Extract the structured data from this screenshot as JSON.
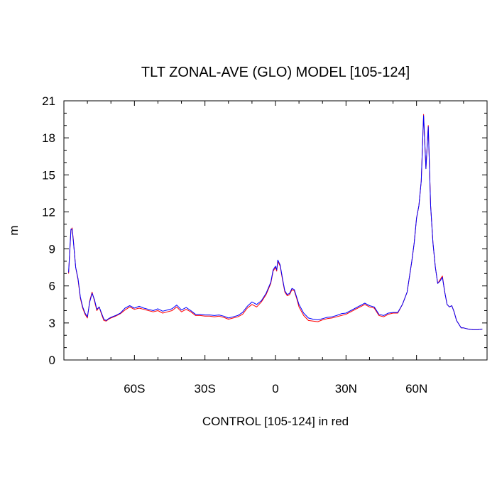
{
  "chart_data": {
    "type": "line",
    "title": "TLT ZONAL-AVE (GLO) MODEL [105-124]",
    "xlabel": "CONTROL [105-124] in red",
    "ylabel": "m",
    "xlim": [
      -90,
      90
    ],
    "ylim": [
      0,
      21
    ],
    "yticks": [
      0,
      3,
      6,
      9,
      12,
      15,
      18,
      21
    ],
    "xticks": [
      {
        "value": -60,
        "label": "60S"
      },
      {
        "value": -30,
        "label": "30S"
      },
      {
        "value": 0,
        "label": "0"
      },
      {
        "value": 30,
        "label": "30N"
      },
      {
        "value": 60,
        "label": "60N"
      }
    ],
    "grid": false,
    "series": [
      {
        "color": "#ff0000",
        "points": [
          [
            -88,
            7.0
          ],
          [
            -87,
            10.5
          ],
          [
            -86.5,
            10.7
          ],
          [
            -86,
            9.8
          ],
          [
            -85,
            7.5
          ],
          [
            -84,
            6.5
          ],
          [
            -83,
            5.0
          ],
          [
            -82,
            4.2
          ],
          [
            -81,
            3.7
          ],
          [
            -80,
            3.4
          ],
          [
            -79,
            4.8
          ],
          [
            -78,
            5.5
          ],
          [
            -77,
            4.8
          ],
          [
            -76,
            4.0
          ],
          [
            -75,
            4.3
          ],
          [
            -74,
            3.7
          ],
          [
            -73,
            3.2
          ],
          [
            -72,
            3.15
          ],
          [
            -71,
            3.3
          ],
          [
            -70,
            3.4
          ],
          [
            -68,
            3.55
          ],
          [
            -66,
            3.75
          ],
          [
            -64,
            4.05
          ],
          [
            -62,
            4.3
          ],
          [
            -60,
            4.1
          ],
          [
            -58,
            4.2
          ],
          [
            -56,
            4.1
          ],
          [
            -54,
            4.0
          ],
          [
            -52,
            3.9
          ],
          [
            -50,
            4.0
          ],
          [
            -48,
            3.8
          ],
          [
            -46,
            3.9
          ],
          [
            -44,
            4.0
          ],
          [
            -42,
            4.3
          ],
          [
            -40,
            3.9
          ],
          [
            -38,
            4.1
          ],
          [
            -36,
            3.9
          ],
          [
            -34,
            3.6
          ],
          [
            -32,
            3.6
          ],
          [
            -30,
            3.55
          ],
          [
            -28,
            3.55
          ],
          [
            -26,
            3.5
          ],
          [
            -24,
            3.55
          ],
          [
            -22,
            3.45
          ],
          [
            -20,
            3.3
          ],
          [
            -18,
            3.4
          ],
          [
            -16,
            3.5
          ],
          [
            -14,
            3.7
          ],
          [
            -12,
            4.2
          ],
          [
            -10,
            4.5
          ],
          [
            -8,
            4.3
          ],
          [
            -6,
            4.7
          ],
          [
            -4,
            5.3
          ],
          [
            -2,
            6.2
          ],
          [
            -1,
            7.2
          ],
          [
            0,
            7.5
          ],
          [
            0.5,
            7.2
          ],
          [
            1,
            8.0
          ],
          [
            2,
            7.6
          ],
          [
            3,
            6.5
          ],
          [
            4,
            5.5
          ],
          [
            5,
            5.2
          ],
          [
            6,
            5.3
          ],
          [
            7,
            5.7
          ],
          [
            8,
            5.6
          ],
          [
            9,
            5.0
          ],
          [
            10,
            4.3
          ],
          [
            12,
            3.6
          ],
          [
            14,
            3.2
          ],
          [
            16,
            3.15
          ],
          [
            18,
            3.1
          ],
          [
            20,
            3.25
          ],
          [
            22,
            3.35
          ],
          [
            24,
            3.4
          ],
          [
            26,
            3.5
          ],
          [
            28,
            3.6
          ],
          [
            30,
            3.7
          ],
          [
            32,
            3.9
          ],
          [
            34,
            4.1
          ],
          [
            36,
            4.3
          ],
          [
            38,
            4.5
          ],
          [
            40,
            4.3
          ],
          [
            42,
            4.2
          ],
          [
            44,
            3.6
          ],
          [
            46,
            3.5
          ],
          [
            48,
            3.7
          ],
          [
            50,
            3.8
          ],
          [
            52,
            3.8
          ],
          [
            54,
            4.5
          ],
          [
            56,
            5.5
          ],
          [
            58,
            8.0
          ],
          [
            59,
            9.5
          ],
          [
            60,
            11.5
          ],
          [
            61,
            12.5
          ],
          [
            62,
            14.5
          ],
          [
            63,
            19.9
          ],
          [
            64,
            15.5
          ],
          [
            65,
            19.0
          ],
          [
            66,
            12.5
          ],
          [
            67,
            9.5
          ],
          [
            68,
            7.5
          ],
          [
            69,
            6.2
          ],
          [
            70,
            6.5
          ],
          [
            71,
            6.8
          ],
          [
            72,
            5.5
          ],
          [
            73,
            4.5
          ],
          [
            74,
            4.3
          ],
          [
            75,
            4.4
          ],
          [
            76,
            3.9
          ],
          [
            77,
            3.2
          ],
          [
            78,
            2.9
          ],
          [
            79,
            2.6
          ],
          [
            80,
            2.6
          ],
          [
            82,
            2.5
          ],
          [
            84,
            2.45
          ],
          [
            86,
            2.45
          ],
          [
            88,
            2.5
          ]
        ]
      },
      {
        "color": "#0000ff",
        "points": [
          [
            -88,
            7.1
          ],
          [
            -87,
            10.6
          ],
          [
            -86.5,
            10.6
          ],
          [
            -86,
            9.7
          ],
          [
            -85,
            7.5
          ],
          [
            -84,
            6.6
          ],
          [
            -83,
            5.1
          ],
          [
            -82,
            4.3
          ],
          [
            -81,
            3.8
          ],
          [
            -80,
            3.5
          ],
          [
            -79,
            4.7
          ],
          [
            -78,
            5.4
          ],
          [
            -77,
            4.9
          ],
          [
            -76,
            4.1
          ],
          [
            -75,
            4.3
          ],
          [
            -74,
            3.8
          ],
          [
            -73,
            3.3
          ],
          [
            -72,
            3.2
          ],
          [
            -71,
            3.35
          ],
          [
            -70,
            3.45
          ],
          [
            -68,
            3.6
          ],
          [
            -66,
            3.8
          ],
          [
            -64,
            4.2
          ],
          [
            -62,
            4.4
          ],
          [
            -60,
            4.2
          ],
          [
            -58,
            4.35
          ],
          [
            -56,
            4.2
          ],
          [
            -54,
            4.1
          ],
          [
            -52,
            4.0
          ],
          [
            -50,
            4.15
          ],
          [
            -48,
            3.95
          ],
          [
            -46,
            4.05
          ],
          [
            -44,
            4.15
          ],
          [
            -42,
            4.45
          ],
          [
            -40,
            4.05
          ],
          [
            -38,
            4.25
          ],
          [
            -36,
            4.0
          ],
          [
            -34,
            3.7
          ],
          [
            -32,
            3.7
          ],
          [
            -30,
            3.65
          ],
          [
            -28,
            3.65
          ],
          [
            -26,
            3.6
          ],
          [
            -24,
            3.65
          ],
          [
            -22,
            3.55
          ],
          [
            -20,
            3.4
          ],
          [
            -18,
            3.5
          ],
          [
            -16,
            3.6
          ],
          [
            -14,
            3.85
          ],
          [
            -12,
            4.35
          ],
          [
            -10,
            4.7
          ],
          [
            -8,
            4.5
          ],
          [
            -6,
            4.8
          ],
          [
            -4,
            5.4
          ],
          [
            -2,
            6.3
          ],
          [
            -1,
            7.3
          ],
          [
            0,
            7.6
          ],
          [
            0.5,
            7.3
          ],
          [
            1,
            8.1
          ],
          [
            2,
            7.7
          ],
          [
            3,
            6.6
          ],
          [
            4,
            5.6
          ],
          [
            5,
            5.3
          ],
          [
            6,
            5.4
          ],
          [
            7,
            5.8
          ],
          [
            8,
            5.7
          ],
          [
            9,
            5.1
          ],
          [
            10,
            4.5
          ],
          [
            12,
            3.8
          ],
          [
            14,
            3.4
          ],
          [
            16,
            3.3
          ],
          [
            18,
            3.25
          ],
          [
            20,
            3.35
          ],
          [
            22,
            3.45
          ],
          [
            24,
            3.5
          ],
          [
            26,
            3.6
          ],
          [
            28,
            3.75
          ],
          [
            30,
            3.8
          ],
          [
            32,
            4.0
          ],
          [
            34,
            4.2
          ],
          [
            36,
            4.4
          ],
          [
            38,
            4.6
          ],
          [
            40,
            4.4
          ],
          [
            42,
            4.3
          ],
          [
            44,
            3.7
          ],
          [
            46,
            3.6
          ],
          [
            48,
            3.8
          ],
          [
            50,
            3.85
          ],
          [
            52,
            3.85
          ],
          [
            54,
            4.5
          ],
          [
            56,
            5.5
          ],
          [
            58,
            8.0
          ],
          [
            59,
            9.5
          ],
          [
            60,
            11.5
          ],
          [
            61,
            12.5
          ],
          [
            62,
            14.5
          ],
          [
            63,
            19.8
          ],
          [
            64,
            15.5
          ],
          [
            65,
            18.9
          ],
          [
            66,
            12.5
          ],
          [
            67,
            9.5
          ],
          [
            68,
            7.5
          ],
          [
            69,
            6.2
          ],
          [
            70,
            6.4
          ],
          [
            71,
            6.7
          ],
          [
            72,
            5.5
          ],
          [
            73,
            4.5
          ],
          [
            74,
            4.3
          ],
          [
            75,
            4.4
          ],
          [
            76,
            3.9
          ],
          [
            77,
            3.2
          ],
          [
            78,
            2.9
          ],
          [
            79,
            2.6
          ],
          [
            80,
            2.6
          ],
          [
            82,
            2.5
          ],
          [
            84,
            2.45
          ],
          [
            86,
            2.45
          ],
          [
            88,
            2.5
          ]
        ]
      }
    ]
  }
}
